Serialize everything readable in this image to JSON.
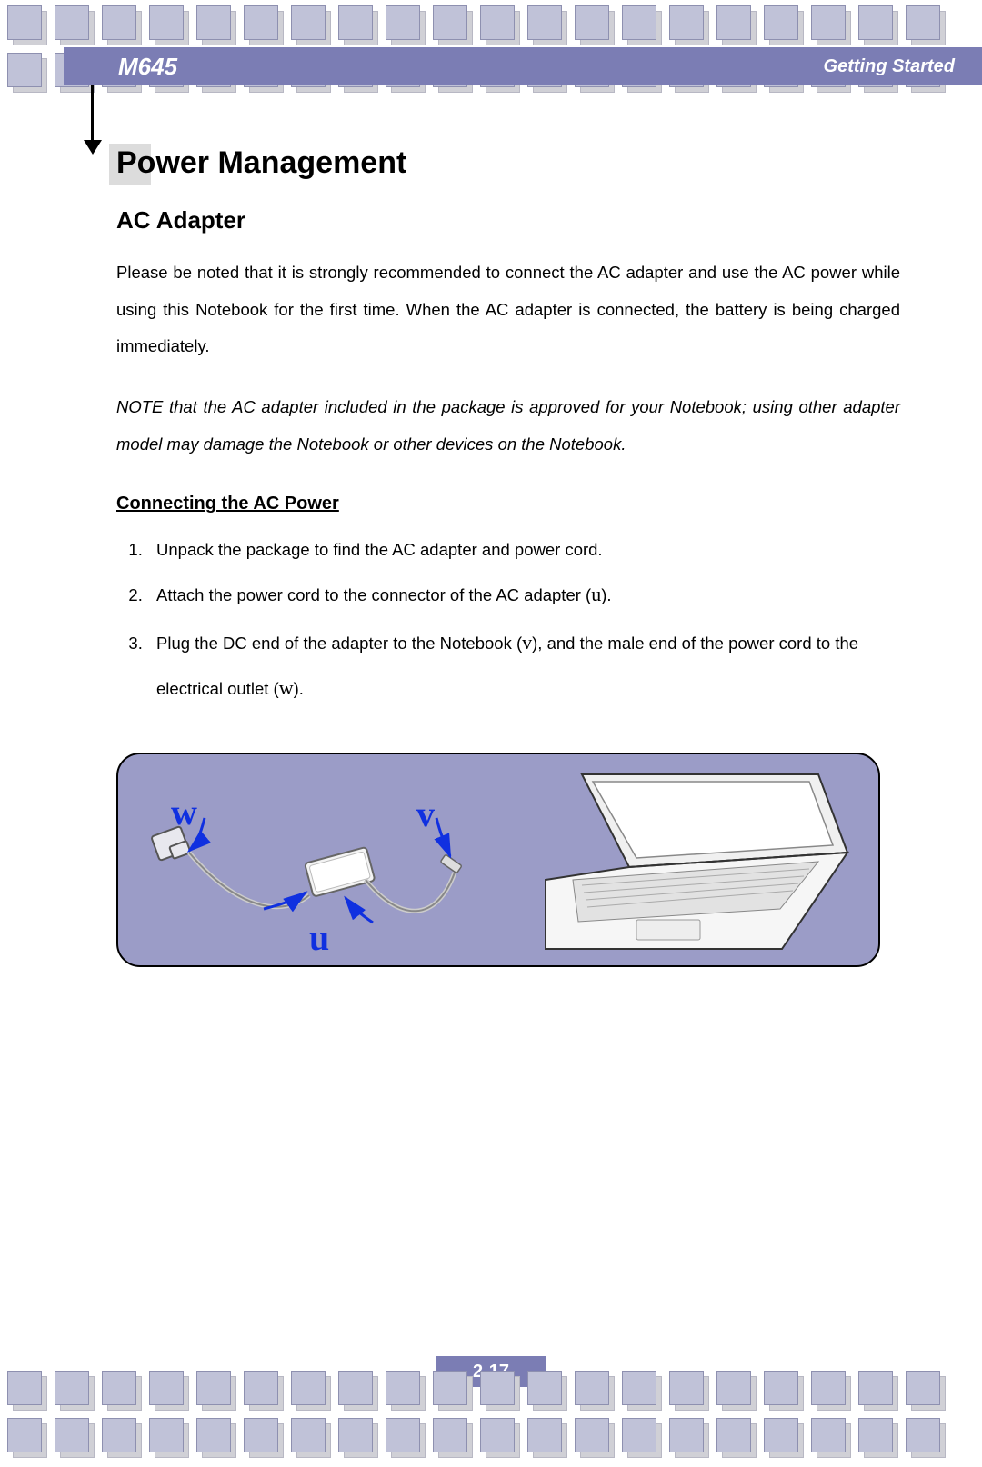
{
  "header": {
    "model": "M645",
    "section": "Getting Started"
  },
  "title": "Power Management",
  "subtitle": "AC Adapter",
  "paragraph1": "Please be noted that it is strongly recommended to connect the AC adapter and use the AC power while using this Notebook for the first time.   When the AC adapter is connected, the battery is being charged immediately.",
  "note": "NOTE that the AC adapter included in the package is approved for your Notebook; using other adapter model may damage the Notebook or other devices on the Notebook.",
  "subheading": "Connecting the AC Power",
  "steps": {
    "s1": "Unpack the package to find the AC adapter and power cord.",
    "s2_a": "Attach the power cord to the connector of the AC adapter (",
    "s2_ref": "u",
    "s2_b": ").",
    "s3_a": "Plug the DC end of the adapter to the Notebook (",
    "s3_ref1": "v",
    "s3_b": "), and the male end of the power cord to the electrical outlet (",
    "s3_ref2": "w",
    "s3_c": ")."
  },
  "figure": {
    "callouts": {
      "u": "u",
      "v": "v",
      "w": "w"
    },
    "panel_bg": "#9b9cc7",
    "callout_color": "#1030e0"
  },
  "page_number": "2-17",
  "decor": {
    "square_front": "#c0c2d8",
    "square_back": "#d0d0d6",
    "bar_color": "#7b7db4",
    "rows_per_strip": 2,
    "squares_per_row": 20
  }
}
